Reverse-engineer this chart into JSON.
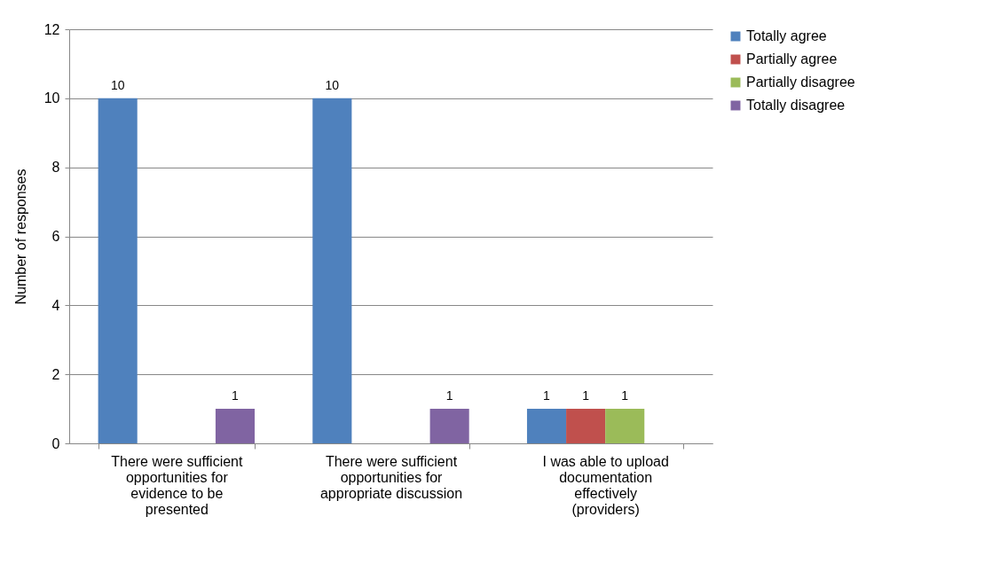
{
  "chart_data": {
    "type": "bar",
    "ylabel": "Number of responses",
    "categories": [
      "There were sufficient opportunities for evidence to be presented",
      "There were sufficient opportunities for appropriate discussion",
      "I was able to upload documentation effectively (providers)"
    ],
    "series": [
      {
        "name": "Totally agree",
        "color": "#4f81bd",
        "values": [
          10,
          10,
          1
        ]
      },
      {
        "name": "Partially agree",
        "color": "#c0504d",
        "values": [
          null,
          null,
          1
        ]
      },
      {
        "name": "Partially disagree",
        "color": "#9bbb59",
        "values": [
          null,
          null,
          1
        ]
      },
      {
        "name": "Totally disagree",
        "color": "#8064a2",
        "values": [
          1,
          1,
          null
        ]
      }
    ],
    "ylim": [
      0,
      12
    ],
    "yticks": [
      0,
      2,
      4,
      6,
      8,
      10,
      12
    ],
    "grid": "y",
    "legend": "right",
    "data_labels": true
  }
}
